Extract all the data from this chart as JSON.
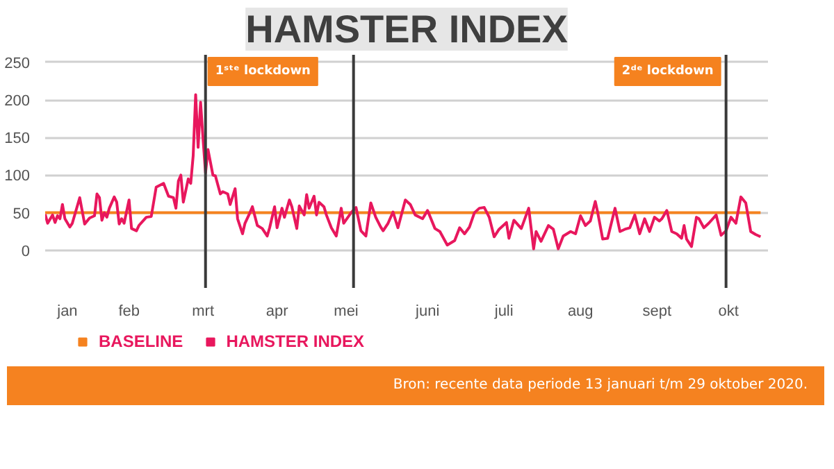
{
  "chart_data": {
    "type": "line",
    "title": "HAMSTER INDEX",
    "xlim": [
      "2020-01-13",
      "2020-11-01"
    ],
    "xticks": [
      {
        "value": "2020-01-22",
        "label": "jan"
      },
      {
        "value": "2020-02-16",
        "label": "feb"
      },
      {
        "value": "2020-03-17",
        "label": "mrt"
      },
      {
        "value": "2020-04-16",
        "label": "apr"
      },
      {
        "value": "2020-05-14",
        "label": "mei"
      },
      {
        "value": "2020-06-16",
        "label": "juni"
      },
      {
        "value": "2020-07-17",
        "label": "juli"
      },
      {
        "value": "2020-08-17",
        "label": "aug"
      },
      {
        "value": "2020-09-17",
        "label": "sept"
      },
      {
        "value": "2020-10-16",
        "label": "okt"
      }
    ],
    "ylim": [
      -50,
      260
    ],
    "yticks": [
      0,
      50,
      100,
      150,
      200,
      250
    ],
    "grid": "y",
    "legend": "bottom left",
    "series": [
      {
        "name": "BASELINE",
        "color": "#f5821f",
        "x": [
          "2020-01-13",
          "2020-10-29"
        ],
        "values": [
          50,
          50
        ]
      },
      {
        "name": "HAMSTER INDEX",
        "color": "#e8175d",
        "x": [
          "2020-01-13",
          "2020-01-14",
          "2020-01-16",
          "2020-01-17",
          "2020-01-18",
          "2020-01-19",
          "2020-01-20",
          "2020-01-21",
          "2020-01-23",
          "2020-01-24",
          "2020-01-27",
          "2020-01-29",
          "2020-01-31",
          "2020-02-02",
          "2020-02-03",
          "2020-02-04",
          "2020-02-05",
          "2020-02-06",
          "2020-02-07",
          "2020-02-08",
          "2020-02-10",
          "2020-02-11",
          "2020-02-12",
          "2020-02-13",
          "2020-02-14",
          "2020-02-16",
          "2020-02-17",
          "2020-02-19",
          "2020-02-20",
          "2020-02-23",
          "2020-02-25",
          "2020-02-27",
          "2020-03-01",
          "2020-03-03",
          "2020-03-05",
          "2020-03-06",
          "2020-03-07",
          "2020-03-08",
          "2020-03-09",
          "2020-03-11",
          "2020-03-12",
          "2020-03-13",
          "2020-03-14",
          "2020-03-15",
          "2020-03-16",
          "2020-03-17",
          "2020-03-18",
          "2020-03-19",
          "2020-03-21",
          "2020-03-22",
          "2020-03-24",
          "2020-03-25",
          "2020-03-27",
          "2020-03-28",
          "2020-03-30",
          "2020-03-31",
          "2020-04-02",
          "2020-04-03",
          "2020-04-05",
          "2020-04-06",
          "2020-04-08",
          "2020-04-10",
          "2020-04-12",
          "2020-04-13",
          "2020-04-15",
          "2020-04-16",
          "2020-04-18",
          "2020-04-19",
          "2020-04-21",
          "2020-04-22",
          "2020-04-24",
          "2020-04-25",
          "2020-04-27",
          "2020-04-28",
          "2020-04-29",
          "2020-05-01",
          "2020-05-02",
          "2020-05-03",
          "2020-05-05",
          "2020-05-06",
          "2020-05-08",
          "2020-05-10",
          "2020-05-12",
          "2020-05-13",
          "2020-05-16",
          "2020-05-18",
          "2020-05-20",
          "2020-05-22",
          "2020-05-24",
          "2020-05-26",
          "2020-05-28",
          "2020-05-29",
          "2020-05-31",
          "2020-06-02",
          "2020-06-04",
          "2020-06-07",
          "2020-06-09",
          "2020-06-11",
          "2020-06-14",
          "2020-06-16",
          "2020-06-19",
          "2020-06-21",
          "2020-06-24",
          "2020-06-27",
          "2020-06-29",
          "2020-07-01",
          "2020-07-03",
          "2020-07-05",
          "2020-07-07",
          "2020-07-09",
          "2020-07-11",
          "2020-07-13",
          "2020-07-15",
          "2020-07-18",
          "2020-07-19",
          "2020-07-21",
          "2020-07-24",
          "2020-07-27",
          "2020-07-29",
          "2020-07-30",
          "2020-08-01",
          "2020-08-04",
          "2020-08-06",
          "2020-08-08",
          "2020-08-10",
          "2020-08-13",
          "2020-08-15",
          "2020-08-17",
          "2020-08-19",
          "2020-08-21",
          "2020-08-23",
          "2020-08-24",
          "2020-08-26",
          "2020-08-28",
          "2020-08-31",
          "2020-09-02",
          "2020-09-04",
          "2020-09-06",
          "2020-09-08",
          "2020-09-10",
          "2020-09-12",
          "2020-09-14",
          "2020-09-16",
          "2020-09-18",
          "2020-09-19",
          "2020-09-21",
          "2020-09-23",
          "2020-09-25",
          "2020-09-27",
          "2020-09-28",
          "2020-09-29",
          "2020-10-01",
          "2020-10-03",
          "2020-10-04",
          "2020-10-06",
          "2020-10-08",
          "2020-10-11",
          "2020-10-13",
          "2020-10-15",
          "2020-10-17",
          "2020-10-19",
          "2020-10-21",
          "2020-10-23",
          "2020-10-24",
          "2020-10-25",
          "2020-10-27",
          "2020-10-29"
        ],
        "values": [
          48,
          36,
          47,
          37,
          46,
          42,
          61,
          42,
          31,
          36,
          70,
          35,
          43,
          46,
          75,
          70,
          40,
          50,
          44,
          56,
          71,
          64,
          35,
          42,
          36,
          67,
          29,
          26,
          33,
          44,
          45,
          84,
          89,
          72,
          70,
          56,
          92,
          100,
          64,
          95,
          89,
          126,
          207,
          137,
          197,
          148,
          103,
          134,
          100,
          99,
          75,
          78,
          75,
          61,
          82,
          42,
          22,
          36,
          50,
          58,
          33,
          29,
          19,
          30,
          58,
          30,
          56,
          44,
          67,
          58,
          29,
          59,
          47,
          74,
          56,
          72,
          47,
          64,
          58,
          47,
          30,
          19,
          56,
          36,
          50,
          57,
          26,
          19,
          63,
          44,
          31,
          26,
          36,
          51,
          30,
          67,
          61,
          47,
          42,
          53,
          29,
          25,
          7,
          13,
          30,
          22,
          31,
          50,
          56,
          57,
          44,
          18,
          28,
          37,
          16,
          40,
          29,
          56,
          2,
          25,
          12,
          33,
          28,
          2,
          19,
          25,
          22,
          46,
          33,
          39,
          65,
          50,
          15,
          16,
          56,
          25,
          28,
          30,
          47,
          22,
          42,
          25,
          44,
          39,
          42,
          53,
          25,
          22,
          16,
          33,
          15,
          5,
          44,
          42,
          30,
          36,
          47,
          20,
          26,
          44,
          36,
          71,
          63,
          44,
          25,
          21,
          18
        ]
      }
    ],
    "ref_lines": [
      {
        "axis": "x",
        "value": "2020-03-18",
        "label": "1ˢᵗᵉ lockdown",
        "color": "#3a3a3a"
      },
      {
        "axis": "x",
        "value": "2020-05-17",
        "color": "#3a3a3a"
      },
      {
        "axis": "x",
        "value": "2020-10-15",
        "label": "2ᵈᵉ lockdown",
        "color": "#3a3a3a"
      }
    ],
    "annotations": [
      "Bron:  recente data periode 13 januari t/m 29 oktober 2020."
    ]
  }
}
